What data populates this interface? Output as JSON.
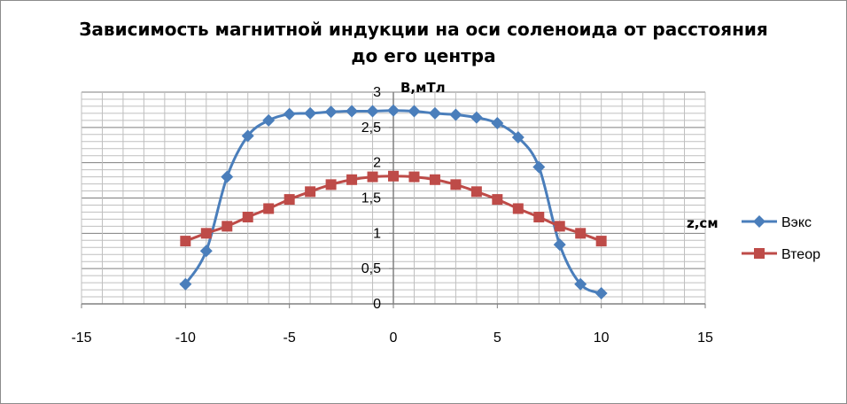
{
  "chart_data": {
    "type": "scatter",
    "title_lines": [
      "Зависимость магнитной индукции на оси соленоида от расстояния",
      "до его центра"
    ],
    "xlabel": "z,см",
    "ylabel": "B,мТл",
    "xlim": [
      -15,
      15
    ],
    "ylim": [
      0,
      3
    ],
    "x_ticks": [
      -15,
      -10,
      -5,
      0,
      5,
      10,
      15
    ],
    "y_ticks": [
      0,
      0.5,
      1,
      1.5,
      2,
      2.5,
      3
    ],
    "y_tick_labels": [
      "0",
      "0,5",
      "1",
      "1,5",
      "2",
      "2,5",
      "3"
    ],
    "grid": true,
    "legend_position": "right",
    "series": [
      {
        "name": "Вэкс",
        "color": "#4a7ebb",
        "marker": "diamond",
        "x": [
          -10,
          -9,
          -8,
          -7,
          -6,
          -5,
          -4,
          -3,
          -2,
          -1,
          0,
          1,
          2,
          3,
          4,
          5,
          6,
          7,
          8,
          9,
          10
        ],
        "y": [
          0.28,
          0.75,
          1.8,
          2.38,
          2.6,
          2.69,
          2.7,
          2.72,
          2.73,
          2.73,
          2.74,
          2.73,
          2.7,
          2.68,
          2.64,
          2.56,
          2.36,
          1.94,
          0.84,
          0.28,
          0.15
        ]
      },
      {
        "name": "Втеор",
        "color": "#be4b48",
        "marker": "square",
        "x": [
          -10,
          -9,
          -8,
          -7,
          -6,
          -5,
          -4,
          -3,
          -2,
          -1,
          0,
          1,
          2,
          3,
          4,
          5,
          6,
          7,
          8,
          9,
          10
        ],
        "y": [
          0.89,
          1.0,
          1.1,
          1.23,
          1.35,
          1.48,
          1.59,
          1.69,
          1.76,
          1.8,
          1.81,
          1.8,
          1.76,
          1.69,
          1.59,
          1.48,
          1.35,
          1.23,
          1.1,
          1.0,
          0.89
        ]
      }
    ]
  }
}
